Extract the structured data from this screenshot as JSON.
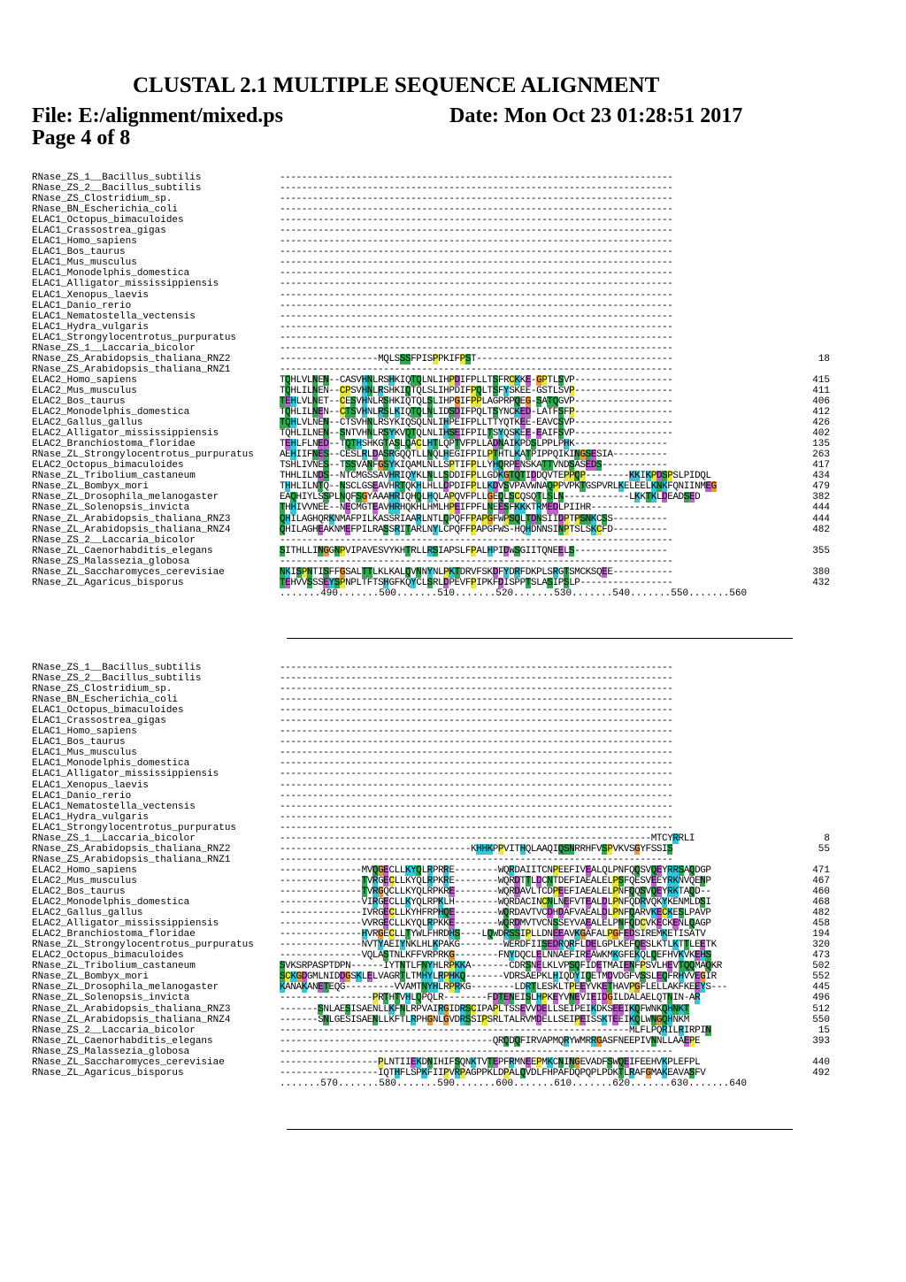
{
  "header": {
    "title": "CLUSTAL 2.1 MULTIPLE SEQUENCE ALIGNMENT",
    "file": "File: E:/alignment/mixed.ps",
    "date": "Date: Mon Oct 23 01:28:51 2017",
    "page": "Page 4 of 8"
  },
  "colors": {
    "green": "#2fa84f",
    "cyan": "#33c6d6",
    "magenta": "#c25fd0",
    "yellow": "#e8e83a",
    "orange": "#e89a3a",
    "red": "#d23b3b"
  },
  "blocks": [
    {
      "rows": [
        {
          "name": "RNase_ZS_1__Bacillus_subtilis",
          "seq": "------------------------------------------------------------------------",
          "num": ""
        },
        {
          "name": "RNase_ZS_2__Bacillus_subtilis",
          "seq": "------------------------------------------------------------------------",
          "num": ""
        },
        {
          "name": "RNase_ZS_Clostridium_sp.",
          "seq": "------------------------------------------------------------------------",
          "num": ""
        },
        {
          "name": "RNase_BN_Escherichia_coli",
          "seq": "------------------------------------------------------------------------",
          "num": ""
        },
        {
          "name": "ELAC1_Octopus_bimaculoides",
          "seq": "------------------------------------------------------------------------",
          "num": ""
        },
        {
          "name": "ELAC1_Crassostrea_gigas",
          "seq": "------------------------------------------------------------------------",
          "num": ""
        },
        {
          "name": "ELAC1_Homo_sapiens",
          "seq": "------------------------------------------------------------------------",
          "num": ""
        },
        {
          "name": "ELAC1_Bos_taurus",
          "seq": "------------------------------------------------------------------------",
          "num": ""
        },
        {
          "name": "ELAC1_Mus_musculus",
          "seq": "------------------------------------------------------------------------",
          "num": ""
        },
        {
          "name": "ELAC1_Monodelphis_domestica",
          "seq": "------------------------------------------------------------------------",
          "num": ""
        },
        {
          "name": "ELAC1_Alligator_mississippiensis",
          "seq": "------------------------------------------------------------------------",
          "num": ""
        },
        {
          "name": "ELAC1_Xenopus_laevis",
          "seq": "------------------------------------------------------------------------",
          "num": ""
        },
        {
          "name": "ELAC1_Danio_rerio",
          "seq": "------------------------------------------------------------------------",
          "num": ""
        },
        {
          "name": "ELAC1_Nematostella_vectensis",
          "seq": "------------------------------------------------------------------------",
          "num": ""
        },
        {
          "name": "ELAC1_Hydra_vulgaris",
          "seq": "------------------------------------------------------------------------",
          "num": ""
        },
        {
          "name": "ELAC1_Strongylocentrotus_purpuratus",
          "seq": "------------------------------------------------------------------------",
          "num": ""
        },
        {
          "name": "RNase_ZS_1__Laccaria_bicolor",
          "seq": "------------------------------------------------------------------------",
          "num": ""
        },
        {
          "name": "RNase_ZS_Arabidopsis_thaliana_RNZ2",
          "seq": "------------------MQLSSSFPISPPKIFPST------------------------------------",
          "num": "18"
        },
        {
          "name": "RNase_ZS_Arabidopsis_thaliana_RNZ1",
          "seq": "------------------------------------------------------------------------",
          "num": ""
        },
        {
          "name": "ELAC2_Homo_sapiens",
          "seq": "TQHLVLNEN--CASVHNLRSHKIQTQLNLIHPDIFPLLTSFRCKKE-GPTLSVP------------------",
          "num": "415"
        },
        {
          "name": "ELAC2_Mus_musculus",
          "seq": "TQHLILNEN--CPSVHNLRSHKIQTQLSLIHPDIFPQLTSFYSKEE-GSTLSVP------------------",
          "num": "411"
        },
        {
          "name": "ELAC2_Bos_taurus",
          "seq": "TEHLVLNET--CESVHNLRSHKIQTQLSLIHPGIFPPLAGPRPQEG-SATQGVP------------------",
          "num": "406"
        },
        {
          "name": "ELAC2_Monodelphis_domestica",
          "seq": "TQHLILNEN--CTSVHNLRSLKIQTQLNLIDSDIFPQLTSYNCKED-LATFSFP------------------",
          "num": "412"
        },
        {
          "name": "ELAC2_Gallus_gallus",
          "seq": "TQHLVLNEN--CTSVHNLRSYKIQSQLNLIHPEIFPLLTTYQTKEE-EAVCSVP------------------",
          "num": "426"
        },
        {
          "name": "ELAC2_Alligator_mississippiensis",
          "seq": "TQHLILNEN--SNTVHNLRSYKVQTQLNLIHSEIFPILTSYQSKEE-EAIFSVP------------------",
          "num": "402"
        },
        {
          "name": "ELAC2_Branchiostoma_floridae",
          "seq": "TEHLFLNED--TQTHSHKGTASLQACLHTLQPTVFPLLADNAIKPDSLPPLPHK-----------------",
          "num": "135"
        },
        {
          "name": "RNase_ZL_Strongylocentrotus_purpuratus",
          "seq": "AEHIIFNES--CESLRLDASRGQQTLLNQLHEGIFPILPTHTLKATPIPPQIKINGSESIA----------",
          "num": "263"
        },
        {
          "name": "ELAC2_Octopus_bimaculoides",
          "seq": "TSHLIVNES--TSSVANFGSYKIQAMLNLLSPTIFPLLYHQRPENSKATTVNDSASEDS------------",
          "num": "417"
        },
        {
          "name": "RNase_ZL_Tribolium_castaneum",
          "seq": "THHLILNDS--NTCMGSSAVHRIQYKLNLLSDDIFPLLGDKGTQTIDDQVTEPPQP--------KKIKPDSPSLPIDQL",
          "num": "434"
        },
        {
          "name": "RNase_ZL_Bombyx_mori",
          "seq": "THHLILNTQ--NSCLGSEAVHRTQKHLHLLDPDIFPLLKDVSVPAVWNAQPPVPKTGSPVRLKELEELKNKFQNIINMEG",
          "num": "479"
        },
        {
          "name": "RNase_ZL_Drosophila_melanogaster",
          "seq": "EAQHIYLSSPLNQFSGYAAAHRIQHQLHQLAPQVFPLLGEQLSCQSQTLSLN------------LKKTKLDEADSED",
          "num": "382"
        },
        {
          "name": "RNase_ZL_Solenopsis_invicta",
          "seq": "THHIVVNEE--NECMGTEAVHRHQKHLHMLHPEIFPFLNEESFKKKTRMEDLPIIHR-------------",
          "num": "444"
        },
        {
          "name": "RNase_ZL_Arabidopsis_thaliana_RNZ3",
          "seq": "QHILAGHQRKNMAFPILKASSRIAARLNTLQPQFFPAPGFWPSQLTDNSIIDPTPSNKCSS----------",
          "num": "444"
        },
        {
          "name": "RNase_ZL_Arabidopsis_thaliana_RNZ4",
          "seq": "QHILAGHEAKNMEFPILRASSRITARLNYLCPQFFPAPGFWS-HQHDNNSINPTSLSKCFD----------",
          "num": "482"
        },
        {
          "name": "RNase_ZS_2__Laccaria_bicolor",
          "seq": "------------------------------------------------------------------------",
          "num": ""
        },
        {
          "name": "RNase_ZL_Caenorhabditis_elegans",
          "seq": "SITHLLINGGNPVIPAVESVYKHTRLLRSIAPSLFPALHPIDWSGIITQNEELS-----------------",
          "num": "355"
        },
        {
          "name": "RNase_ZS_Malassezia_globosa",
          "seq": "------------------------------------------------------------------------",
          "num": ""
        },
        {
          "name": "RNase_ZL_Saccharomyces_cerevisiae",
          "seq": "NKISPNTISFFGSALTTLKLKALQVNNYNLPKTDRVFSKDFYDRFDKPLSRGTSMCKSQEE-----------",
          "num": "380"
        },
        {
          "name": "RNase_ZL_Agaricus_bisporus",
          "seq": "TEHVVSSSEYSPNPLTFTSHGFKQYCLSRLDPEVFPIPKFDISPPTSLASIPSLP-----------------",
          "num": "432"
        }
      ],
      "ruler": ".......490.......500.......510.......520.......530.......540.......550.......560"
    },
    {
      "rows": [
        {
          "name": "RNase_ZS_1__Bacillus_subtilis",
          "seq": "------------------------------------------------------------------------",
          "num": ""
        },
        {
          "name": "RNase_ZS_2__Bacillus_subtilis",
          "seq": "------------------------------------------------------------------------",
          "num": ""
        },
        {
          "name": "RNase_ZS_Clostridium_sp.",
          "seq": "------------------------------------------------------------------------",
          "num": ""
        },
        {
          "name": "RNase_BN_Escherichia_coli",
          "seq": "------------------------------------------------------------------------",
          "num": ""
        },
        {
          "name": "ELAC1_Octopus_bimaculoides",
          "seq": "------------------------------------------------------------------------",
          "num": ""
        },
        {
          "name": "ELAC1_Crassostrea_gigas",
          "seq": "------------------------------------------------------------------------",
          "num": ""
        },
        {
          "name": "ELAC1_Homo_sapiens",
          "seq": "------------------------------------------------------------------------",
          "num": ""
        },
        {
          "name": "ELAC1_Bos_taurus",
          "seq": "------------------------------------------------------------------------",
          "num": ""
        },
        {
          "name": "ELAC1_Mus_musculus",
          "seq": "------------------------------------------------------------------------",
          "num": ""
        },
        {
          "name": "ELAC1_Monodelphis_domestica",
          "seq": "------------------------------------------------------------------------",
          "num": ""
        },
        {
          "name": "ELAC1_Alligator_mississippiensis",
          "seq": "------------------------------------------------------------------------",
          "num": ""
        },
        {
          "name": "ELAC1_Xenopus_laevis",
          "seq": "------------------------------------------------------------------------",
          "num": ""
        },
        {
          "name": "ELAC1_Danio_rerio",
          "seq": "------------------------------------------------------------------------",
          "num": ""
        },
        {
          "name": "ELAC1_Nematostella_vectensis",
          "seq": "------------------------------------------------------------------------",
          "num": ""
        },
        {
          "name": "ELAC1_Hydra_vulgaris",
          "seq": "------------------------------------------------------------------------",
          "num": ""
        },
        {
          "name": "ELAC1_Strongylocentrotus_purpuratus",
          "seq": "------------------------------------------------------------------------",
          "num": ""
        },
        {
          "name": "RNase_ZS_1__Laccaria_bicolor",
          "seq": "--------------------------------------------------------------------MTCYRRLI",
          "num": "8"
        },
        {
          "name": "RNase_ZS_Arabidopsis_thaliana_RNZ2",
          "seq": "-----------------------------------KHHKPPVITHQLAAQIQSNRRHFVSPVKVSGYFSSIS",
          "num": "55"
        },
        {
          "name": "RNase_ZS_Arabidopsis_thaliana_RNZ1",
          "seq": "------------------------------------------------------------------------",
          "num": ""
        },
        {
          "name": "ELAC2_Homo_sapiens",
          "seq": "---------------MVQGECLLKYQLRPRRE--------WQRDAIITCNPEEFIVEALQLPNFQQSVQEYRRSAQDGP",
          "num": "471"
        },
        {
          "name": "ELAC2_Mus_musculus",
          "seq": "---------------TVRGECLLKYQLRPKRE--------WQRDTTLDCNTDEFIAEALELPSFQESVEEYRKNVQENP",
          "num": "467"
        },
        {
          "name": "ELAC2_Bos_taurus",
          "seq": "---------------TVRGQCLLKYQLRPKRE--------WQRDAVLTCDPEEFIAEALELPNFQQSVQEYRKTAQD--",
          "num": "460"
        },
        {
          "name": "ELAC2_Monodelphis_domestica",
          "seq": "---------------VIRGECLLKYQLRPKLH--------WQRDACINCNLNEFVTEALDLPNFQDRVQKYKENMLDSI",
          "num": "468"
        },
        {
          "name": "ELAC2_Gallus_gallus",
          "seq": "---------------IVRGECLLKYHFRPHQE--------WQRDAVTVCDHDAFVAEALDLPNFQARVKECKESLPAVP",
          "num": "482"
        },
        {
          "name": "ELAC2_Alligator_mississippiensis",
          "seq": "---------------VVRGECLLKYQLRPKKE--------WQRDMVTVCNSSEYVAEALELPNFQDCVKECKENLQAGP",
          "num": "458"
        },
        {
          "name": "ELAC2_Branchiostoma_floridae",
          "seq": "---------------HVRGECLLTYWLFHRDHS----LQWDRSSIPLLDNEEAVKGAFALPGFEDSIREMKETISATV",
          "num": "194"
        },
        {
          "name": "RNase_ZL_Strongylocentrotus_purpuratus",
          "seq": "---------------NVTYAEIYNKLHLKPAKG--------WERDFIISEDRQRFLDELGPLKEFQESLKTLKTTLEETK",
          "num": "320"
        },
        {
          "name": "ELAC2_Octopus_bimaculoides",
          "seq": "---------------VQLASTNLKFFVRPRKG--------FNYDQCLELNNAEFIREAWKMKGFEKQLQEFHVKVKEHS",
          "num": "473"
        },
        {
          "name": "RNase_ZL_Tribolium_castaneum",
          "seq": "SVKSRPASPTDPN------IYTNTLFNYHLRPKKA-------CDRSNELKLVPSQFIDETMAIENFPSVLHEVTQQMAQKR",
          "num": "502"
        },
        {
          "name": "RNase_ZL_Bombyx_mori",
          "seq": "SCKGDGMLNIDDGSKLELVAGRTLTMHYLRPHKQ-------VDRSAEPKLHIQDYIQETMDVDGFVSSLEQFRHVVEGIR",
          "num": "552"
        },
        {
          "name": "RNase_ZL_Drosophila_melanogaster",
          "seq": "KANAKANETEQG---------VVAMTNYHLRPRKG--------LDRTLESKLTPEEYVKETHAVPGFLELLAKFKEEYS---",
          "num": "445"
        },
        {
          "name": "RNase_ZL_Solenopsis_invicta",
          "seq": "-----------------PRTHTVHLQPQLR--------FDTENEISLHPKEYVNEVIEIDGILDALAELQTNIN-AR",
          "num": "496"
        },
        {
          "name": "RNase_ZL_Arabidopsis_thaliana_RNZ3",
          "seq": "-------SNLAESISAENLLKFNLRPVAIRGIDRSCIPAPLTSSEVVDELLSEIPEIKDKSEEIKQFWNKQHNKT",
          "num": "512"
        },
        {
          "name": "RNase_ZL_Arabidopsis_thaliana_RNZ4",
          "seq": "-------SNLGESISAENLLKFTLRPHGNLGVDRSSIPSRLTALRVMDELLSEIPEISSKTEEIKQLWNGQHNKM",
          "num": "550"
        },
        {
          "name": "RNase_ZS_2__Laccaria_bicolor",
          "seq": "----------------------------------------------------------------MLFLPQRILRIRPIN",
          "num": "15"
        },
        {
          "name": "RNase_ZL_Caenorhabditis_elegans",
          "seq": "---------------------------------------QRQDQFIRVAPMQRYWMRRGASFNEEPIVNNLLAAEPE",
          "num": "393"
        },
        {
          "name": "RNase_ZS_Malassezia_globosa",
          "seq": "------------------------------------------------------------------------",
          "num": ""
        },
        {
          "name": "RNase_ZL_Saccharomyces_cerevisiae",
          "seq": "------------------PLNTIIEKDNIHIFSQNKTVTEPFRMNEEPMKCNINGEVADFSWQEIFEEHVKPLEFPL",
          "num": "440"
        },
        {
          "name": "RNase_ZL_Agaricus_bisporus",
          "seq": "------------------IQTHFLSPKFIIPVRPAGPPKLDPALQVDLFHPAFDQPQPLPDKTLRAFGMAKEAVASFV",
          "num": "492"
        }
      ],
      "ruler": ".......570.......580.......590.......600.......610.......620.......630.......640"
    }
  ]
}
